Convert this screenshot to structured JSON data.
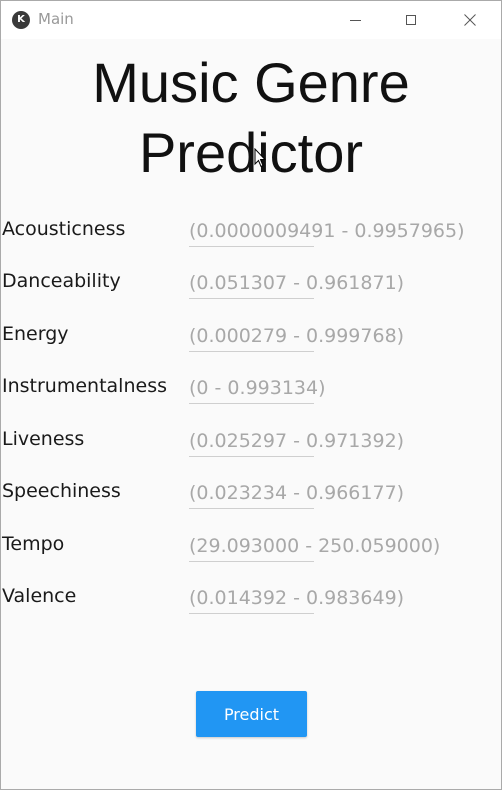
{
  "window": {
    "title": "Main",
    "icon": "kivy-app-icon",
    "controls": {
      "minimize_icon": "minimize-icon",
      "maximize_icon": "maximize-icon",
      "close_icon": "close-icon",
      "close_glyph": "✕"
    }
  },
  "app_title": {
    "line1": "Music Genre",
    "line2": "Predictor"
  },
  "fields": [
    {
      "label": "Acousticness",
      "placeholder": "(0.0000009491 - 0.9957965)"
    },
    {
      "label": "Danceability",
      "placeholder": "(0.051307 - 0.961871)"
    },
    {
      "label": "Energy",
      "placeholder": "(0.000279 - 0.999768)"
    },
    {
      "label": "Instrumentalness",
      "placeholder": "(0 - 0.993134)"
    },
    {
      "label": "Liveness",
      "placeholder": "(0.025297 - 0.971392)"
    },
    {
      "label": "Speechiness",
      "placeholder": "(0.023234 - 0.966177)"
    },
    {
      "label": "Tempo",
      "placeholder": "(29.093000 - 250.059000)"
    },
    {
      "label": "Valence",
      "placeholder": "(0.014392 - 0.983649)"
    }
  ],
  "predict_button": {
    "label": "Predict"
  },
  "colors": {
    "accent": "#2196f3",
    "background": "#fafafa",
    "placeholder": "#a8a8a8"
  }
}
